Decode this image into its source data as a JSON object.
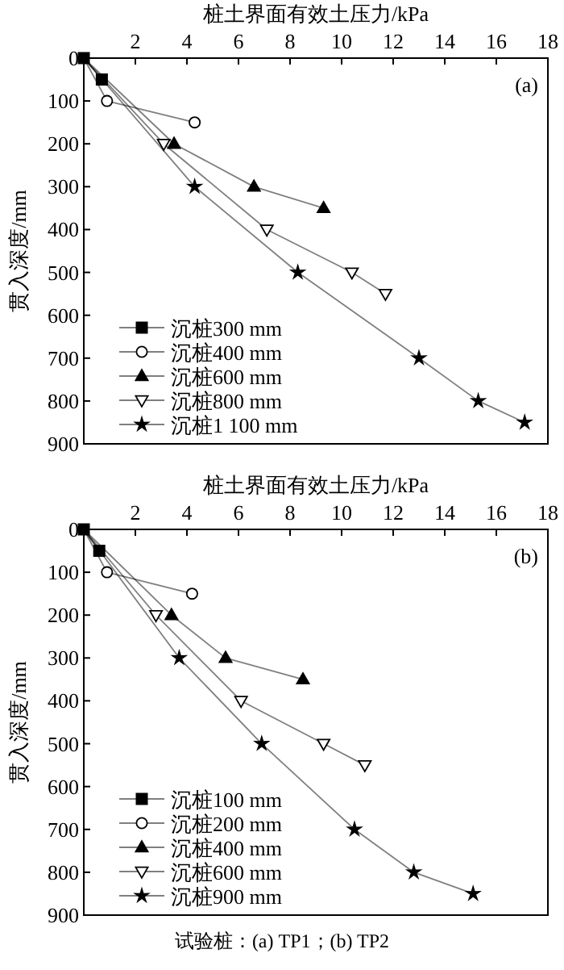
{
  "chart_data": [
    {
      "type": "line",
      "title": "桩土界面有效土压力/kPa",
      "ylabel": "贯入深度/mm",
      "xlim": [
        0,
        18
      ],
      "xticks": [
        2,
        4,
        6,
        8,
        10,
        12,
        14,
        16,
        18
      ],
      "ylim": [
        900,
        0
      ],
      "yticks": [
        0,
        100,
        200,
        300,
        400,
        500,
        600,
        700,
        800,
        900
      ],
      "legend": "bottom left",
      "grid": false,
      "annotations": [
        "(a)"
      ],
      "series": [
        {
          "name": "沉桩300 mm",
          "color": "#000000",
          "marker": "square",
          "x": [
            0,
            0.7
          ],
          "values": [
            0,
            50
          ]
        },
        {
          "name": "沉桩400 mm",
          "color": "#000000",
          "marker": "circle-open",
          "x": [
            0,
            0.9,
            4.3
          ],
          "values": [
            0,
            100,
            150
          ]
        },
        {
          "name": "沉桩600 mm",
          "color": "#000000",
          "marker": "triangle",
          "x": [
            0,
            3.5,
            6.6,
            9.3
          ],
          "values": [
            0,
            200,
            300,
            350
          ]
        },
        {
          "name": "沉桩800 mm",
          "color": "#000000",
          "marker": "triangle-down-open",
          "x": [
            0,
            3.1,
            7.1,
            10.4,
            11.7
          ],
          "values": [
            0,
            200,
            400,
            500,
            550
          ]
        },
        {
          "name": "沉桩1 100 mm",
          "color": "#000000",
          "marker": "star",
          "x": [
            0,
            4.3,
            8.3,
            13,
            15.3,
            17.1
          ],
          "values": [
            0,
            300,
            500,
            700,
            800,
            850
          ]
        }
      ]
    },
    {
      "type": "line",
      "title": "桩土界面有效土压力/kPa",
      "ylabel": "贯入深度/mm",
      "xlim": [
        0,
        18
      ],
      "xticks": [
        2,
        4,
        6,
        8,
        10,
        12,
        14,
        16,
        18
      ],
      "ylim": [
        900,
        0
      ],
      "yticks": [
        0,
        100,
        200,
        300,
        400,
        500,
        600,
        700,
        800,
        900
      ],
      "legend": "bottom left",
      "grid": false,
      "annotations": [
        "(b)",
        "试验桩：(a) TP1；(b) TP2"
      ],
      "series": [
        {
          "name": "沉桩100 mm",
          "color": "#000000",
          "marker": "square",
          "x": [
            0,
            0.6
          ],
          "values": [
            0,
            50
          ]
        },
        {
          "name": "沉桩200 mm",
          "color": "#000000",
          "marker": "circle-open",
          "x": [
            0,
            0.9,
            4.2
          ],
          "values": [
            0,
            100,
            150
          ]
        },
        {
          "name": "沉桩400 mm",
          "color": "#000000",
          "marker": "triangle",
          "x": [
            0,
            3.4,
            5.5,
            8.5
          ],
          "values": [
            0,
            200,
            300,
            350
          ]
        },
        {
          "name": "沉桩600 mm",
          "color": "#000000",
          "marker": "triangle-down-open",
          "x": [
            0,
            2.8,
            6.1,
            9.3,
            10.9
          ],
          "values": [
            0,
            200,
            400,
            500,
            550
          ]
        },
        {
          "name": "沉桩900 mm",
          "color": "#000000",
          "marker": "star",
          "x": [
            0,
            3.7,
            6.9,
            10.5,
            12.8,
            15.1
          ],
          "values": [
            0,
            300,
            500,
            700,
            800,
            850
          ]
        }
      ]
    }
  ]
}
